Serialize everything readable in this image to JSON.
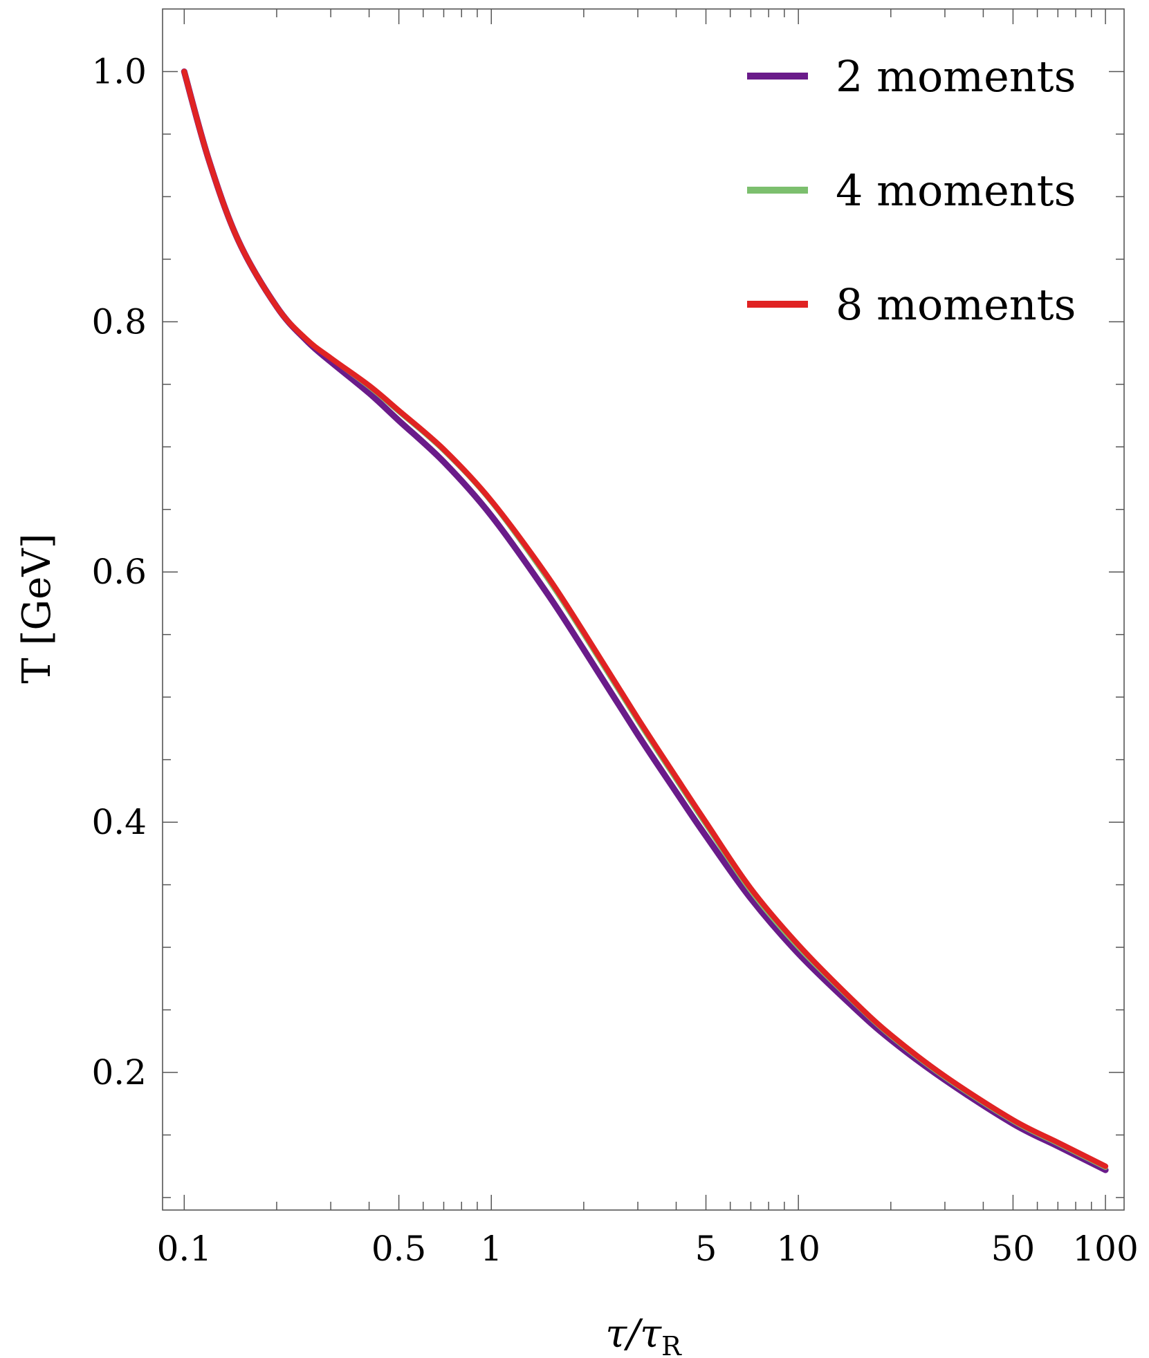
{
  "chart_data": {
    "type": "line",
    "title": "",
    "xlabel": "τ/τ",
    "xlabel_sub": "R",
    "ylabel": "T [GeV]",
    "xscale": "log",
    "xlim": [
      0.085,
      115
    ],
    "ylim": [
      0.09,
      1.05
    ],
    "grid": false,
    "legend_position": "top-right",
    "x_ticks": [
      0.1,
      0.5,
      1,
      5,
      10,
      50,
      100
    ],
    "x_tick_labels": [
      "0.1",
      "0.5",
      "1",
      "5",
      "10",
      "50",
      "100"
    ],
    "y_ticks": [
      0.2,
      0.4,
      0.6,
      0.8,
      1.0
    ],
    "y_tick_labels": [
      "0.2",
      "0.4",
      "0.6",
      "0.8",
      "1.0"
    ],
    "x": [
      0.1,
      0.12,
      0.15,
      0.2,
      0.25,
      0.3,
      0.4,
      0.5,
      0.7,
      1,
      1.5,
      2,
      3,
      4,
      5,
      7,
      10,
      15,
      20,
      30,
      50,
      70,
      100
    ],
    "series": [
      {
        "name": "2 moments",
        "color": "#6a1b8a",
        "values": [
          1.0,
          0.93,
          0.865,
          0.812,
          0.785,
          0.768,
          0.743,
          0.721,
          0.688,
          0.645,
          0.585,
          0.538,
          0.47,
          0.424,
          0.389,
          0.339,
          0.295,
          0.253,
          0.226,
          0.194,
          0.159,
          0.141,
          0.122
        ]
      },
      {
        "name": "4 moments",
        "color": "#7cbf6e",
        "values": [
          1.0,
          0.93,
          0.865,
          0.812,
          0.786,
          0.771,
          0.748,
          0.728,
          0.697,
          0.656,
          0.597,
          0.55,
          0.481,
          0.434,
          0.398,
          0.345,
          0.3,
          0.257,
          0.229,
          0.196,
          0.161,
          0.143,
          0.124
        ]
      },
      {
        "name": "8 moments",
        "color": "#e02323",
        "values": [
          1.0,
          0.93,
          0.865,
          0.812,
          0.786,
          0.771,
          0.749,
          0.729,
          0.698,
          0.657,
          0.599,
          0.552,
          0.483,
          0.436,
          0.4,
          0.347,
          0.302,
          0.258,
          0.23,
          0.197,
          0.162,
          0.144,
          0.125
        ]
      }
    ]
  }
}
